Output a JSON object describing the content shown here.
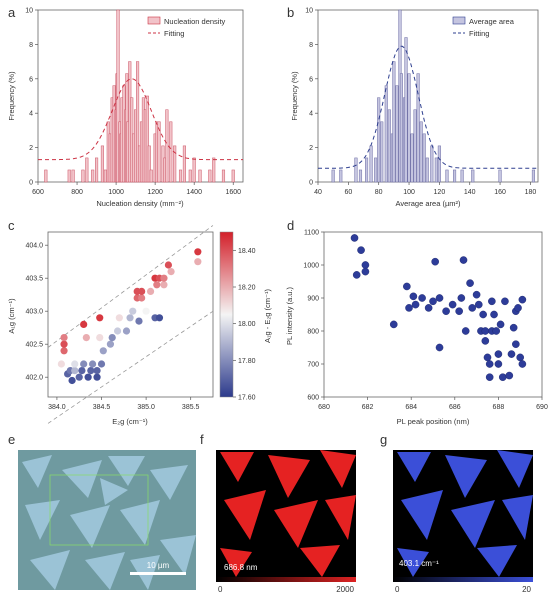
{
  "panel_labels": [
    "a",
    "b",
    "c",
    "d",
    "e",
    "f",
    "g"
  ],
  "colors": {
    "pink": "#e8a0aa",
    "pink_line": "#cc3344",
    "lavender": "#a8a8cc",
    "navy": "#2e3f8f",
    "blue_marker": "#2d3c99"
  },
  "chart_data": [
    {
      "type": "bar",
      "panel": "a",
      "xlabel": "Nucleation density (mm⁻²)",
      "ylabel": "Frequency (%)",
      "xlim": [
        600,
        1650
      ],
      "ylim": [
        0,
        10
      ],
      "xticks": [
        600,
        800,
        1000,
        1200,
        1400,
        1600
      ],
      "yticks": [
        0,
        2,
        4,
        6,
        8,
        10
      ],
      "legend": [
        "Nucleation density",
        "Fitting"
      ],
      "legend_position": "top-right",
      "bar_x": [
        640,
        760,
        780,
        830,
        850,
        880,
        900,
        930,
        945,
        960,
        970,
        980,
        990,
        1000,
        1005,
        1010,
        1020,
        1025,
        1030,
        1040,
        1050,
        1055,
        1060,
        1070,
        1080,
        1090,
        1100,
        1110,
        1120,
        1130,
        1140,
        1150,
        1160,
        1170,
        1180,
        1200,
        1210,
        1220,
        1240,
        1250,
        1260,
        1280,
        1300,
        1330,
        1350,
        1380,
        1400,
        1430,
        1480,
        1500,
        1550,
        1600
      ],
      "bar_values": [
        0.7,
        0.7,
        0.7,
        0.7,
        1.4,
        0.7,
        1.4,
        2.1,
        0.7,
        3.5,
        2.8,
        4.9,
        5.6,
        4.2,
        6.3,
        10.0,
        3.5,
        2.8,
        4.9,
        5.6,
        4.2,
        6.3,
        3.5,
        7.0,
        4.9,
        2.8,
        4.2,
        7.0,
        2.1,
        3.5,
        4.9,
        4.2,
        5.0,
        2.1,
        0.7,
        2.8,
        3.5,
        3.5,
        2.1,
        1.4,
        4.2,
        3.5,
        2.1,
        0.7,
        2.1,
        0.7,
        1.4,
        0.7,
        0.7,
        1.4,
        0.7,
        0.7
      ],
      "fit_baseline": 1.3,
      "fit_center": 1080,
      "fit_sigma": 100,
      "fit_peak": 6.0
    },
    {
      "type": "bar",
      "panel": "b",
      "xlabel": "Average area (µm²)",
      "ylabel": "Frequency (%)",
      "xlim": [
        40,
        185
      ],
      "ylim": [
        0,
        10
      ],
      "xticks": [
        40,
        60,
        80,
        100,
        120,
        140,
        160,
        180
      ],
      "yticks": [
        0,
        2,
        4,
        6,
        8,
        10
      ],
      "legend": [
        "Average area",
        "Fitting"
      ],
      "legend_position": "top-right",
      "bar_x": [
        50,
        55,
        65,
        68,
        72,
        75,
        78,
        80,
        82,
        85,
        87,
        89,
        90,
        92,
        94,
        95,
        97,
        98,
        100,
        102,
        104,
        106,
        108,
        110,
        112,
        115,
        118,
        120,
        125,
        130,
        135,
        142,
        160,
        182
      ],
      "bar_values": [
        0.7,
        0.7,
        1.4,
        0.7,
        1.4,
        2.1,
        1.4,
        4.9,
        3.5,
        5.6,
        4.2,
        2.8,
        7.0,
        5.6,
        10.0,
        6.3,
        4.9,
        8.4,
        6.3,
        2.8,
        4.2,
        6.3,
        3.5,
        2.8,
        1.4,
        2.1,
        1.4,
        2.1,
        0.7,
        0.7,
        0.7,
        0.7,
        0.7,
        0.7
      ],
      "fit_baseline": 0.8,
      "fit_center": 95,
      "fit_sigma": 11,
      "fit_peak": 7.9
    },
    {
      "type": "scatter",
      "panel": "c",
      "xlabel": "E₂g (cm⁻¹)",
      "ylabel": "A₁g (cm⁻¹)",
      "colorbar_label": "A₁g - E₂g (cm⁻¹)",
      "xlim": [
        383.9,
        385.75
      ],
      "ylim": [
        401.7,
        404.2
      ],
      "xticks": [
        384.0,
        384.5,
        385.0,
        385.5
      ],
      "xtick_labels": [
        "384.0",
        "384.5",
        "385.0",
        "385.5"
      ],
      "yticks": [
        402.0,
        402.5,
        403.0,
        403.5,
        404.0
      ],
      "ytick_labels": [
        "402.0",
        "402.5",
        "403.0",
        "403.5",
        "404.0"
      ],
      "clim": [
        17.6,
        18.5
      ],
      "cticks": [
        17.6,
        17.8,
        18.0,
        18.2,
        18.4
      ],
      "ctick_labels": [
        "17.60",
        "17.80",
        "18.00",
        "18.20",
        "18.40"
      ],
      "points": [
        [
          384.05,
          402.2
        ],
        [
          384.08,
          402.4
        ],
        [
          384.08,
          402.5
        ],
        [
          384.08,
          402.6
        ],
        [
          384.12,
          402.05
        ],
        [
          384.15,
          402.1
        ],
        [
          384.17,
          401.95
        ],
        [
          384.2,
          402.1
        ],
        [
          384.2,
          402.2
        ],
        [
          384.25,
          402.0
        ],
        [
          384.28,
          402.1
        ],
        [
          384.3,
          402.2
        ],
        [
          384.3,
          402.8
        ],
        [
          384.33,
          402.6
        ],
        [
          384.35,
          402.0
        ],
        [
          384.38,
          402.1
        ],
        [
          384.4,
          402.2
        ],
        [
          384.45,
          402.0
        ],
        [
          384.45,
          402.1
        ],
        [
          384.48,
          402.6
        ],
        [
          384.48,
          402.9
        ],
        [
          384.5,
          402.2
        ],
        [
          384.52,
          402.4
        ],
        [
          384.6,
          402.5
        ],
        [
          384.62,
          402.6
        ],
        [
          384.68,
          402.7
        ],
        [
          384.7,
          402.9
        ],
        [
          384.78,
          402.7
        ],
        [
          384.82,
          402.9
        ],
        [
          384.85,
          403.0
        ],
        [
          384.9,
          403.2
        ],
        [
          384.9,
          403.3
        ],
        [
          384.92,
          402.85
        ],
        [
          384.95,
          403.2
        ],
        [
          384.95,
          403.3
        ],
        [
          385.0,
          403.0
        ],
        [
          385.05,
          403.3
        ],
        [
          385.1,
          402.9
        ],
        [
          385.1,
          403.5
        ],
        [
          385.12,
          403.4
        ],
        [
          385.15,
          402.9
        ],
        [
          385.15,
          403.5
        ],
        [
          385.2,
          403.4
        ],
        [
          385.2,
          403.5
        ],
        [
          385.25,
          403.7
        ],
        [
          385.28,
          403.6
        ],
        [
          385.58,
          403.9
        ],
        [
          385.58,
          403.75
        ]
      ],
      "point_values": [
        18.1,
        18.35,
        18.4,
        18.3,
        17.7,
        17.75,
        17.65,
        17.9,
        18.0,
        17.7,
        17.7,
        17.8,
        18.45,
        18.2,
        17.65,
        17.7,
        17.8,
        17.65,
        17.7,
        18.1,
        18.45,
        17.75,
        17.85,
        17.85,
        17.8,
        17.95,
        18.1,
        17.85,
        17.9,
        17.95,
        18.35,
        18.4,
        17.75,
        18.3,
        18.4,
        18.05,
        18.2,
        17.7,
        18.45,
        18.3,
        17.65,
        18.4,
        18.2,
        18.3,
        18.4,
        18.2,
        18.45,
        18.2
      ],
      "guide_lines": [
        [
          383.9,
          402.45,
          385.75,
          404.3
        ],
        [
          383.9,
          401.3,
          385.75,
          403.0
        ]
      ]
    },
    {
      "type": "scatter",
      "panel": "d",
      "xlabel": "PL peak position (nm)",
      "ylabel": "PL intensity (a.u.)",
      "xlim": [
        680,
        690
      ],
      "ylim": [
        600,
        1100
      ],
      "xticks": [
        680,
        682,
        684,
        686,
        688,
        690
      ],
      "xtick_labels": [
        "680",
        "682",
        "684",
        "686",
        "688",
        "690"
      ],
      "yticks": [
        600,
        700,
        800,
        900,
        1000,
        1100
      ],
      "ytick_labels": [
        "600",
        "700",
        "800",
        "900",
        "1000",
        "1100"
      ],
      "points": [
        [
          681.4,
          1082
        ],
        [
          681.7,
          1045
        ],
        [
          681.9,
          1000
        ],
        [
          681.9,
          980
        ],
        [
          681.5,
          970
        ],
        [
          683.2,
          820
        ],
        [
          683.8,
          935
        ],
        [
          683.9,
          870
        ],
        [
          684.1,
          905
        ],
        [
          684.2,
          880
        ],
        [
          684.5,
          900
        ],
        [
          684.8,
          870
        ],
        [
          685.0,
          890
        ],
        [
          685.1,
          1010
        ],
        [
          685.3,
          750
        ],
        [
          685.3,
          900
        ],
        [
          685.6,
          860
        ],
        [
          685.9,
          880
        ],
        [
          686.2,
          860
        ],
        [
          686.3,
          900
        ],
        [
          686.4,
          1015
        ],
        [
          686.5,
          800
        ],
        [
          686.7,
          945
        ],
        [
          686.8,
          870
        ],
        [
          687.0,
          910
        ],
        [
          687.1,
          880
        ],
        [
          687.2,
          800
        ],
        [
          687.3,
          850
        ],
        [
          687.4,
          800
        ],
        [
          687.4,
          770
        ],
        [
          687.5,
          720
        ],
        [
          687.6,
          700
        ],
        [
          687.6,
          660
        ],
        [
          687.7,
          800
        ],
        [
          687.7,
          890
        ],
        [
          687.8,
          850
        ],
        [
          687.9,
          800
        ],
        [
          688.0,
          730
        ],
        [
          688.0,
          700
        ],
        [
          688.1,
          820
        ],
        [
          688.2,
          660
        ],
        [
          688.3,
          890
        ],
        [
          688.5,
          665
        ],
        [
          688.6,
          730
        ],
        [
          688.7,
          810
        ],
        [
          688.8,
          860
        ],
        [
          688.8,
          760
        ],
        [
          688.9,
          870
        ],
        [
          689.0,
          720
        ],
        [
          689.1,
          895
        ],
        [
          689.1,
          700
        ]
      ]
    }
  ],
  "images": {
    "e": {
      "scalebar_label": "10 µm"
    },
    "f": {
      "value_label": "686.8 nm",
      "scale_min": "0",
      "scale_max": "2000"
    },
    "g": {
      "value_label": "403.1 cm⁻¹",
      "scale_min": "0",
      "scale_max": "20"
    }
  }
}
